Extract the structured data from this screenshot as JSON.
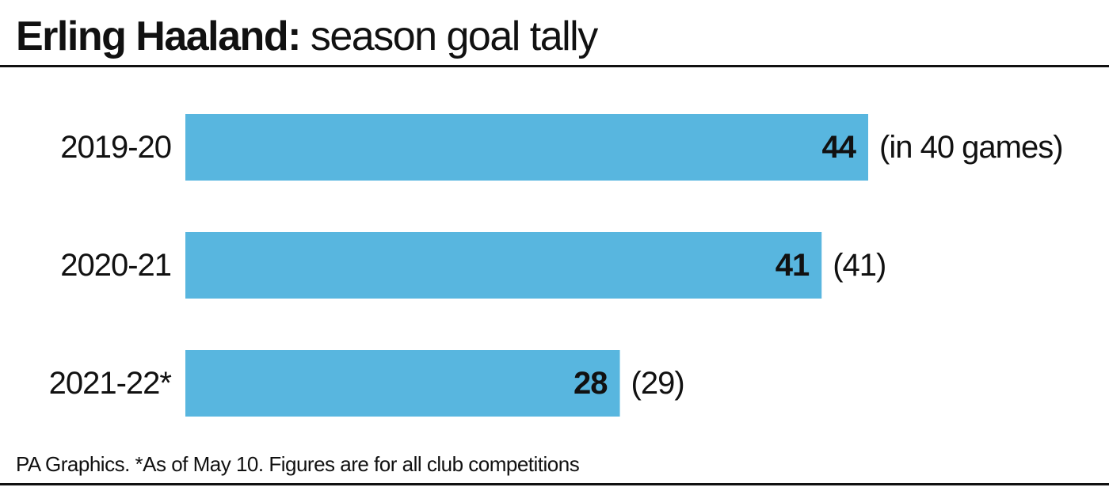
{
  "header": {
    "title_bold": "Erling Haaland:",
    "title_light": "season goal tally"
  },
  "footer": {
    "source": "PA Graphics. *As of May 10. Figures are for all club competitions"
  },
  "colors": {
    "bar": "#58b6df",
    "text": "#111111"
  },
  "chart_data": {
    "type": "bar",
    "orientation": "horizontal",
    "categories": [
      "2019-20",
      "2020-21",
      "2021-22*"
    ],
    "values": [
      44,
      41,
      28
    ],
    "value_labels": [
      "44",
      "41",
      "28"
    ],
    "annotations": [
      "(in 40 games)",
      "(41)",
      "(29)"
    ],
    "xlim": [
      0,
      44
    ],
    "grid": false,
    "legend": "none"
  }
}
